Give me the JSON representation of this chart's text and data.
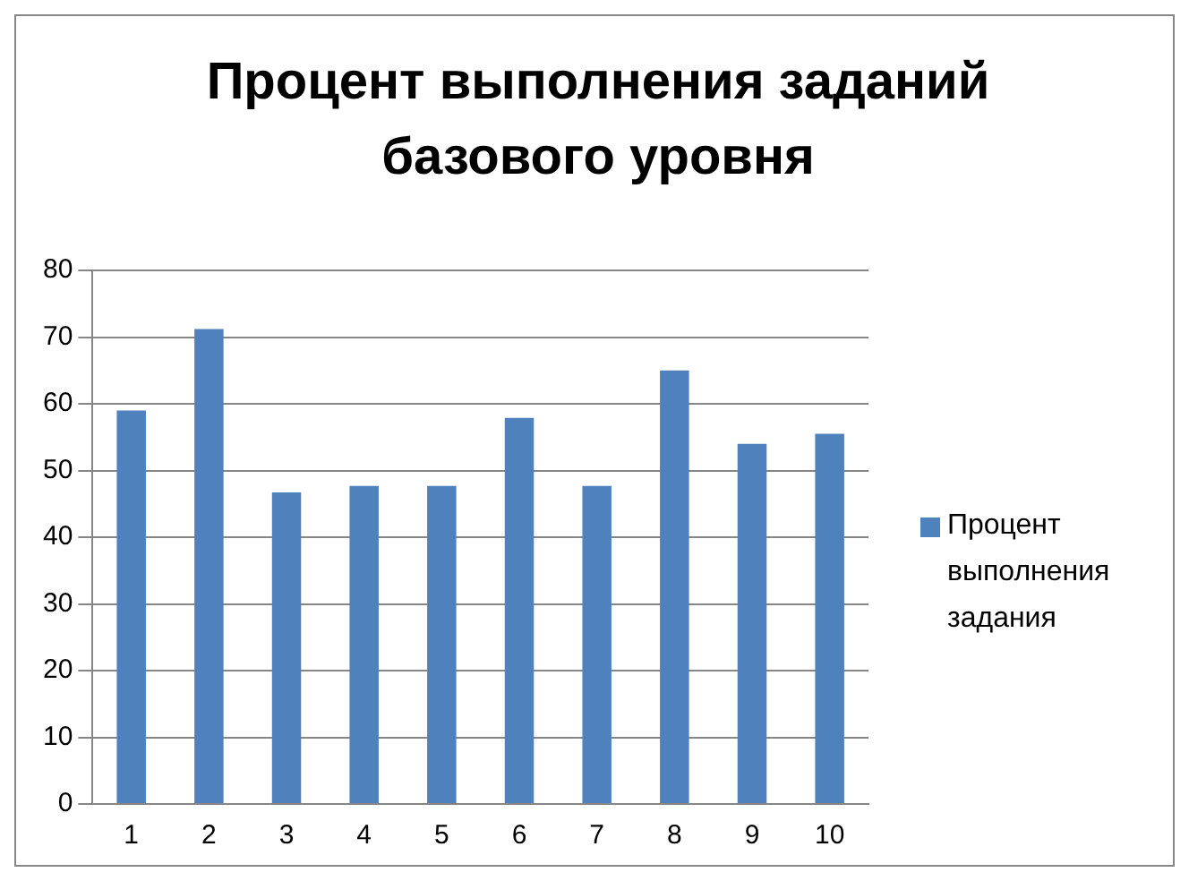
{
  "chart_data": {
    "type": "bar",
    "title": "Процент выполнения заданий базового уровня",
    "categories": [
      "1",
      "2",
      "3",
      "4",
      "5",
      "6",
      "7",
      "8",
      "9",
      "10"
    ],
    "series": [
      {
        "name": "Процент выполнения задания",
        "color": "#4f81bd",
        "values": [
          59,
          71.2,
          46.7,
          47.7,
          47.7,
          57.9,
          47.7,
          65,
          54,
          55.5
        ]
      }
    ],
    "ylim": [
      0,
      80
    ],
    "yticks": [
      0,
      10,
      20,
      30,
      40,
      50,
      60,
      70,
      80
    ],
    "grid": "y",
    "legend": "right"
  }
}
